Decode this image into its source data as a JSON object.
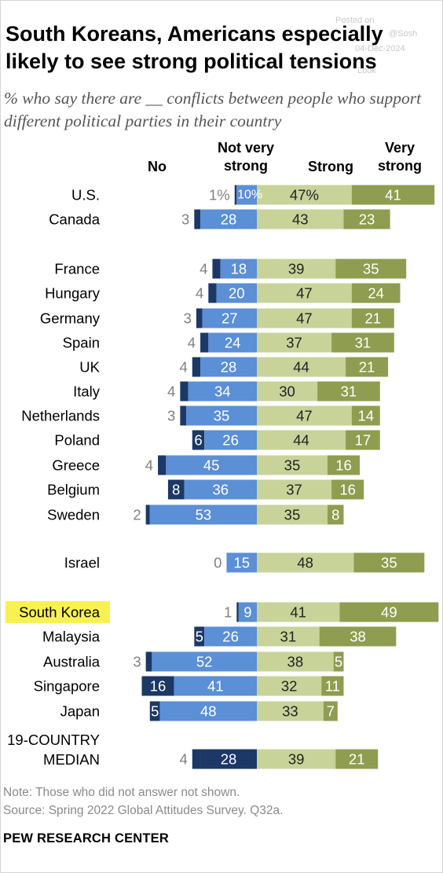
{
  "title": "South Koreans, Americans especially likely to see strong political tensions",
  "subtitle": "% who say there are __ conflicts between people who support different political parties in their country",
  "watermark": {
    "line1": "Posted on",
    "line2": "04-Dec-2024",
    "line3": "@Sosh",
    "line4": "Look"
  },
  "headers": {
    "no": "No",
    "not_very_strong": "Not very strong",
    "strong": "Strong",
    "very_strong": "Very strong"
  },
  "colors": {
    "no": "#1c3866",
    "not_very_strong": "#5b8fd6",
    "strong": "#c8d39a",
    "very_strong": "#8e9d4f",
    "highlight": "#f9f151"
  },
  "note": "Note: Those who did not answer not shown.",
  "source": "Source: Spring 2022 Global Attitudes Survey. Q32a.",
  "brand": "PEW RESEARCH CENTER",
  "chart_data": {
    "type": "bar",
    "stacked": "diverging",
    "series_names": [
      "No",
      "Not very strong",
      "Strong",
      "Very strong"
    ],
    "rows": [
      {
        "country": "U.S.",
        "no": 1,
        "not_very_strong": 10,
        "strong": 47,
        "very_strong": 41,
        "no_label": "1%",
        "nvs_label": "10%",
        "s_label": "47%",
        "vs_label": "41"
      },
      {
        "country": "Canada",
        "no": 3,
        "not_very_strong": 28,
        "strong": 43,
        "very_strong": 23,
        "no_label": "3",
        "nvs_label": "28",
        "s_label": "43",
        "vs_label": "23"
      },
      {
        "country": "France",
        "no": 4,
        "not_very_strong": 18,
        "strong": 39,
        "very_strong": 35,
        "no_label": "4",
        "nvs_label": "18",
        "s_label": "39",
        "vs_label": "35"
      },
      {
        "country": "Hungary",
        "no": 4,
        "not_very_strong": 20,
        "strong": 47,
        "very_strong": 24,
        "no_label": "4",
        "nvs_label": "20",
        "s_label": "47",
        "vs_label": "24"
      },
      {
        "country": "Germany",
        "no": 3,
        "not_very_strong": 27,
        "strong": 47,
        "very_strong": 21,
        "no_label": "3",
        "nvs_label": "27",
        "s_label": "47",
        "vs_label": "21"
      },
      {
        "country": "Spain",
        "no": 4,
        "not_very_strong": 24,
        "strong": 37,
        "very_strong": 31,
        "no_label": "4",
        "nvs_label": "24",
        "s_label": "37",
        "vs_label": "31"
      },
      {
        "country": "UK",
        "no": 4,
        "not_very_strong": 28,
        "strong": 44,
        "very_strong": 21,
        "no_label": "4",
        "nvs_label": "28",
        "s_label": "44",
        "vs_label": "21"
      },
      {
        "country": "Italy",
        "no": 4,
        "not_very_strong": 34,
        "strong": 30,
        "very_strong": 31,
        "no_label": "4",
        "nvs_label": "34",
        "s_label": "30",
        "vs_label": "31"
      },
      {
        "country": "Netherlands",
        "no": 3,
        "not_very_strong": 35,
        "strong": 47,
        "very_strong": 14,
        "no_label": "3",
        "nvs_label": "35",
        "s_label": "47",
        "vs_label": "14"
      },
      {
        "country": "Poland",
        "no": 6,
        "not_very_strong": 26,
        "strong": 44,
        "very_strong": 17,
        "no_label": "6",
        "nvs_label": "26",
        "s_label": "44",
        "vs_label": "17"
      },
      {
        "country": "Greece",
        "no": 4,
        "not_very_strong": 45,
        "strong": 35,
        "very_strong": 16,
        "no_label": "4",
        "nvs_label": "45",
        "s_label": "35",
        "vs_label": "16"
      },
      {
        "country": "Belgium",
        "no": 8,
        "not_very_strong": 36,
        "strong": 37,
        "very_strong": 16,
        "no_label": "8",
        "nvs_label": "36",
        "s_label": "37",
        "vs_label": "16"
      },
      {
        "country": "Sweden",
        "no": 2,
        "not_very_strong": 53,
        "strong": 35,
        "very_strong": 8,
        "no_label": "2",
        "nvs_label": "53",
        "s_label": "35",
        "vs_label": "8"
      },
      {
        "country": "Israel",
        "no": 0,
        "not_very_strong": 15,
        "strong": 48,
        "very_strong": 35,
        "no_label": "0",
        "nvs_label": "15",
        "s_label": "48",
        "vs_label": "35"
      },
      {
        "country": "South Korea",
        "no": 1,
        "not_very_strong": 9,
        "strong": 41,
        "very_strong": 49,
        "no_label": "1",
        "nvs_label": "9",
        "s_label": "41",
        "vs_label": "49",
        "highlight": true
      },
      {
        "country": "Malaysia",
        "no": 5,
        "not_very_strong": 26,
        "strong": 31,
        "very_strong": 38,
        "no_label": "5",
        "nvs_label": "26",
        "s_label": "31",
        "vs_label": "38"
      },
      {
        "country": "Australia",
        "no": 3,
        "not_very_strong": 52,
        "strong": 38,
        "very_strong": 5,
        "no_label": "3",
        "nvs_label": "52",
        "s_label": "38",
        "vs_label": "5"
      },
      {
        "country": "Singapore",
        "no": 16,
        "not_very_strong": 41,
        "strong": 32,
        "very_strong": 11,
        "no_label": "16",
        "nvs_label": "41",
        "s_label": "32",
        "vs_label": "11"
      },
      {
        "country": "Japan",
        "no": 5,
        "not_very_strong": 48,
        "strong": 33,
        "very_strong": 7,
        "no_label": "5",
        "nvs_label": "48",
        "s_label": "33",
        "vs_label": "7"
      },
      {
        "country": "19-COUNTRY MEDIAN",
        "no": 4,
        "not_very_strong": 28,
        "strong": 39,
        "very_strong": 21,
        "no_label": "4",
        "nvs_label": "28",
        "s_label": "39",
        "vs_label": "21",
        "median": true
      }
    ]
  }
}
